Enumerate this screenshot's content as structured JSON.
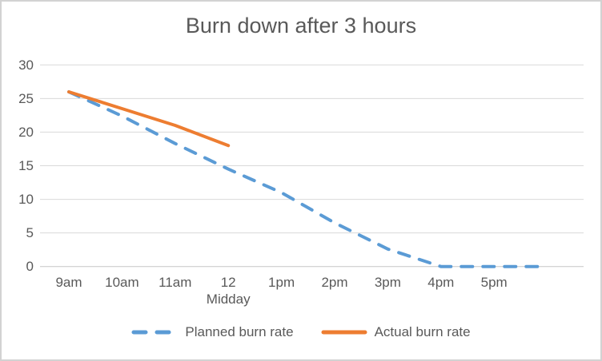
{
  "chart_data": {
    "type": "line",
    "title": "Burn down after 3 hours",
    "categories": [
      "9am",
      "10am",
      "11am",
      "12\nMidday",
      "1pm",
      "2pm",
      "3pm",
      "4pm",
      "5pm",
      ""
    ],
    "series": [
      {
        "name": "Planned burn rate",
        "color": "#5B9BD5",
        "style": "dashed",
        "values": [
          26,
          22.4,
          18.3,
          14.5,
          11,
          6.5,
          2.6,
          0,
          0,
          0
        ]
      },
      {
        "name": "Actual burn rate",
        "color": "#ED7D31",
        "style": "solid",
        "values": [
          26,
          23.5,
          21,
          18
        ]
      }
    ],
    "xlabel": "",
    "ylabel": "",
    "ylim": [
      0,
      30
    ],
    "ytick_step": 5,
    "yticks": [
      "0",
      "5",
      "10",
      "15",
      "20",
      "25",
      "30"
    ],
    "grid": "horizontal",
    "legend_position": "bottom"
  },
  "colors": {
    "text": "#595959",
    "gridline": "#D9D9D9",
    "axis_line": "#C6C6C6",
    "border": "#D2D2D2",
    "background": "#FFFFFF",
    "planned": "#5B9BD5",
    "actual": "#ED7D31"
  }
}
